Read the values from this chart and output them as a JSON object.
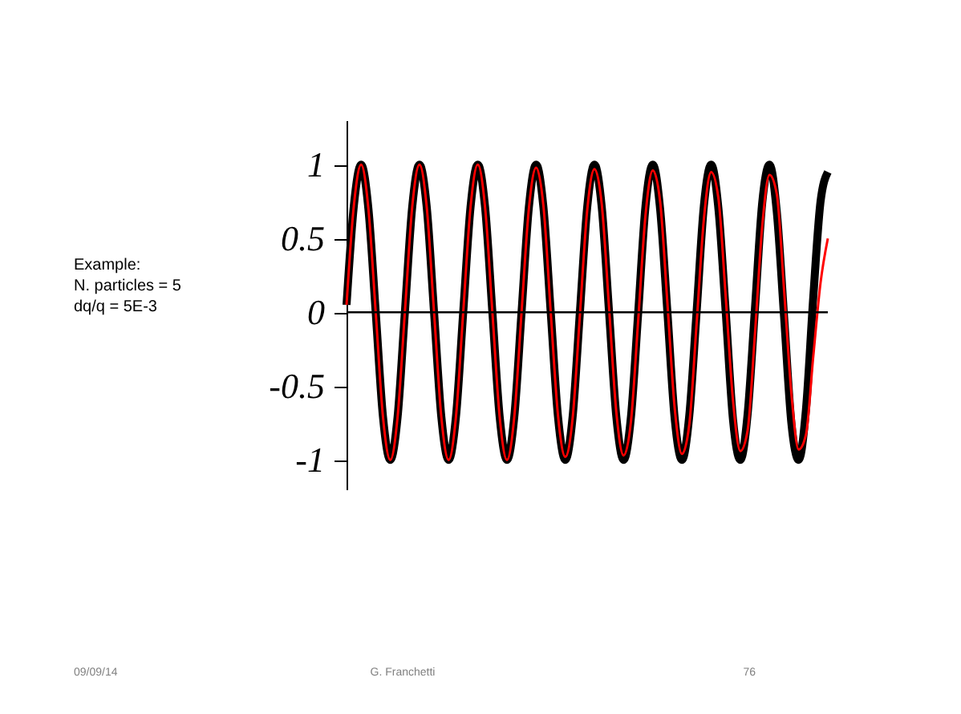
{
  "chart_data": {
    "type": "line",
    "categories": [
      null,
      null,
      null,
      null,
      null,
      null,
      null,
      null,
      null,
      null,
      null,
      null,
      null,
      null,
      null,
      null,
      null,
      null,
      null,
      null,
      null,
      null,
      null,
      null,
      null,
      null,
      null,
      null,
      null,
      null,
      null,
      null,
      null,
      null,
      null,
      null,
      null,
      null,
      null,
      null,
      null,
      null,
      null,
      null,
      null,
      null,
      null,
      null,
      null,
      null,
      null,
      null,
      null,
      null,
      null,
      null,
      null,
      null,
      null,
      null,
      null,
      null,
      null,
      null,
      null,
      null,
      null
    ],
    "series": [
      {
        "color": "#000000",
        "values": [
          0.05,
          0.72,
          1,
          0.7,
          0,
          -0.71,
          -1,
          -0.71,
          0,
          0.71,
          1,
          0.71,
          0,
          -0.71,
          -1,
          -0.71,
          0,
          0.71,
          1,
          0.71,
          0,
          -0.71,
          -1,
          -0.71,
          0,
          0.71,
          1,
          0.71,
          0,
          -0.71,
          -1,
          -0.71,
          0,
          0.71,
          1,
          0.71,
          0,
          -0.71,
          -1,
          -0.71,
          0,
          0.72,
          1,
          0.7,
          0,
          -0.72,
          -1,
          -0.7,
          0,
          0.72,
          1,
          0.7,
          0,
          -0.73,
          -1,
          -0.69,
          0.02,
          0.74,
          1,
          0.68,
          -0.03,
          -0.75,
          -1,
          -0.66,
          0.1,
          0.75,
          0.95
        ]
      },
      {
        "color": "#ff0000",
        "values": [
          0.05,
          0.72,
          1,
          0.7,
          0,
          -0.71,
          -1,
          -0.71,
          0,
          0.71,
          1,
          0.71,
          0,
          -0.71,
          -1,
          -0.71,
          0,
          0.71,
          1,
          0.71,
          0,
          -0.71,
          -1,
          -0.71,
          0,
          0.7,
          0.98,
          0.72,
          0,
          -0.7,
          -0.98,
          -0.72,
          -0.02,
          0.69,
          0.97,
          0.73,
          0.03,
          -0.68,
          -0.97,
          -0.74,
          -0.05,
          0.66,
          0.96,
          0.75,
          0.06,
          -0.65,
          -0.96,
          -0.76,
          -0.08,
          0.63,
          0.95,
          0.77,
          0.1,
          -0.6,
          -0.94,
          -0.8,
          -0.15,
          0.58,
          0.93,
          0.8,
          0.15,
          -0.55,
          -0.93,
          -0.83,
          -0.3,
          0.2,
          0.5
        ]
      }
    ],
    "ylim": [
      -1.2,
      1.3
    ],
    "yticks": [
      -1,
      -0.5,
      0,
      0.5,
      1
    ],
    "ref_lines": [
      {
        "axis": "y",
        "value": 0,
        "color": "#000000"
      }
    ],
    "tick_labels": "y",
    "grid": false,
    "legend": false,
    "marker": "none",
    "line_style": "solid",
    "annotations": [
      "Example:\nN. particles = 5\ndq/q = 5E-3",
      "09/09/14",
      "G. Franchetti",
      "76"
    ]
  }
}
